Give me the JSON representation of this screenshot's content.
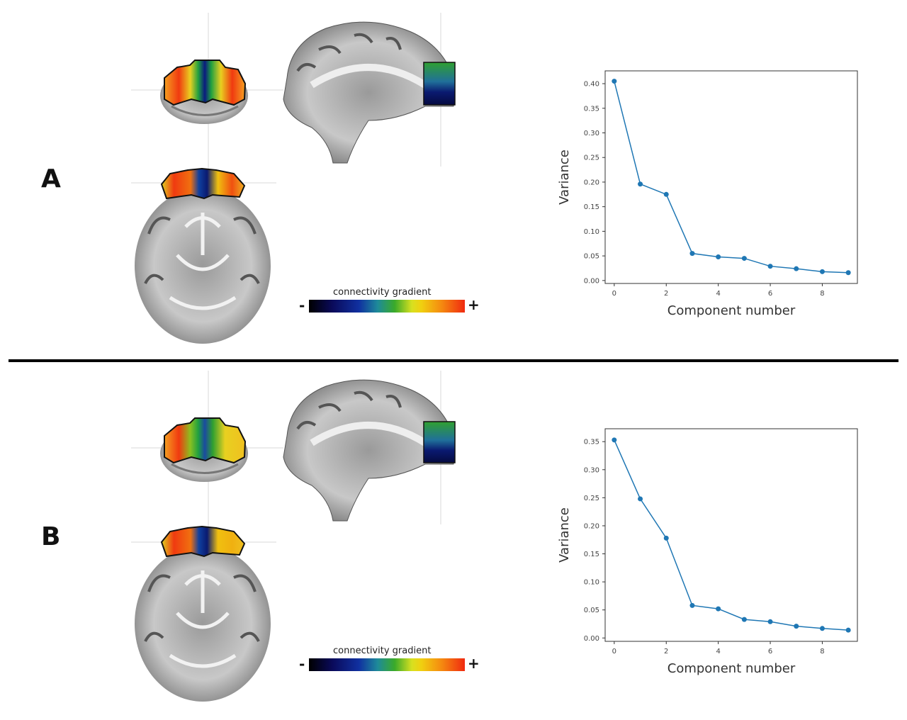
{
  "panels": [
    {
      "letter": "A",
      "colorbar": {
        "title": "connectivity gradient",
        "min_symbol": "-",
        "max_symbol": "+"
      }
    },
    {
      "letter": "B",
      "colorbar": {
        "title": "connectivity gradient",
        "min_symbol": "-",
        "max_symbol": "+"
      }
    }
  ],
  "colors": {
    "line": "#1f77b4",
    "frame": "#333333"
  },
  "chart_data": [
    {
      "type": "line",
      "title": "",
      "xlabel": "Component number",
      "ylabel": "Variance",
      "x": [
        0,
        1,
        2,
        3,
        4,
        5,
        6,
        7,
        8,
        9
      ],
      "series": [
        {
          "values": [
            0.405,
            0.196,
            0.175,
            0.055,
            0.048,
            0.045,
            0.029,
            0.024,
            0.018,
            0.016
          ]
        }
      ],
      "xticks": [
        0,
        2,
        4,
        6,
        8
      ],
      "yticks": [
        0.0,
        0.05,
        0.1,
        0.15,
        0.2,
        0.25,
        0.3,
        0.35,
        0.4
      ],
      "ytick_labels": [
        "0.00",
        "0.05",
        "0.10",
        "0.15",
        "0.20",
        "0.25",
        "0.30",
        "0.35",
        "0.40"
      ],
      "xlim": [
        -0.35,
        9.35
      ],
      "ylim": [
        -0.006,
        0.426
      ],
      "grid": false
    },
    {
      "type": "line",
      "title": "",
      "xlabel": "Component number",
      "ylabel": "Variance",
      "x": [
        0,
        1,
        2,
        3,
        4,
        5,
        6,
        7,
        8,
        9
      ],
      "series": [
        {
          "values": [
            0.353,
            0.248,
            0.178,
            0.058,
            0.052,
            0.033,
            0.029,
            0.021,
            0.017,
            0.014
          ]
        }
      ],
      "xticks": [
        0,
        2,
        4,
        6,
        8
      ],
      "yticks": [
        0.0,
        0.05,
        0.1,
        0.15,
        0.2,
        0.25,
        0.3,
        0.35
      ],
      "ytick_labels": [
        "0.00",
        "0.05",
        "0.10",
        "0.15",
        "0.20",
        "0.25",
        "0.30",
        "0.35"
      ],
      "xlim": [
        -0.35,
        9.35
      ],
      "ylim": [
        -0.006,
        0.373
      ],
      "grid": false
    }
  ]
}
